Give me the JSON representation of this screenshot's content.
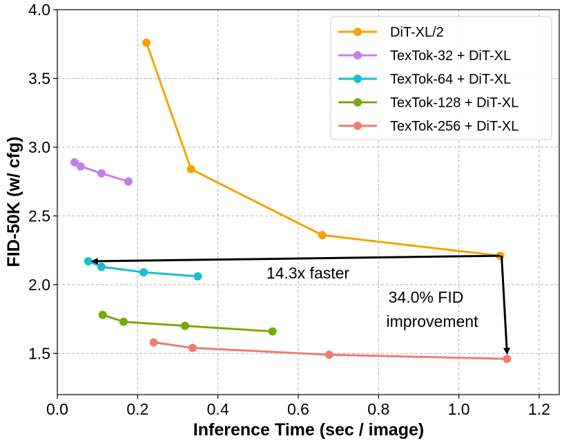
{
  "chart_data": {
    "type": "line",
    "title": "",
    "xlabel": "Inference Time (sec / image)",
    "ylabel": "FID-50K (w/ cfg)",
    "xlim": [
      0.0,
      1.25
    ],
    "ylim": [
      1.2,
      4.0
    ],
    "xticks": [
      0.0,
      0.2,
      0.4,
      0.6,
      0.8,
      1.0,
      1.2
    ],
    "xtick_labels": [
      "0.0",
      "0.2",
      "0.4",
      "0.6",
      "0.8",
      "1.0",
      "1.2"
    ],
    "yticks": [
      1.5,
      2.0,
      2.5,
      3.0,
      3.5,
      4.0
    ],
    "ytick_labels": [
      "1.5",
      "2.0",
      "2.5",
      "3.0",
      "3.5",
      "4.0"
    ],
    "grid": true,
    "legend_position": "top-right",
    "series": [
      {
        "name": "DiT-XL/2",
        "color": "#f5a300",
        "x": [
          0.222,
          0.333,
          0.66,
          1.103
        ],
        "y": [
          3.76,
          2.84,
          2.36,
          2.21
        ]
      },
      {
        "name": "TexTok-32 + DiT-XL",
        "color": "#c27fef",
        "x": [
          0.043,
          0.058,
          0.11,
          0.177
        ],
        "y": [
          2.89,
          2.86,
          2.81,
          2.75
        ]
      },
      {
        "name": "TexTok-64 + DiT-XL",
        "color": "#17becf",
        "x": [
          0.077,
          0.11,
          0.215,
          0.35
        ],
        "y": [
          2.17,
          2.13,
          2.09,
          2.06
        ]
      },
      {
        "name": "TexTok-128 + DiT-XL",
        "color": "#77a90f",
        "x": [
          0.113,
          0.165,
          0.318,
          0.536
        ],
        "y": [
          1.78,
          1.73,
          1.7,
          1.66
        ]
      },
      {
        "name": "TexTok-256 + DiT-XL",
        "color": "#f07b72",
        "x": [
          0.24,
          0.337,
          0.677,
          1.12
        ],
        "y": [
          1.58,
          1.54,
          1.49,
          1.46
        ]
      }
    ],
    "annotations": [
      {
        "text": "14.3x faster",
        "from": [
          1.103,
          2.21
        ],
        "to": [
          0.077,
          2.17
        ]
      },
      {
        "text_lines": [
          "34.0% FID",
          "improvement"
        ],
        "from": [
          1.103,
          2.21
        ],
        "to": [
          1.12,
          1.46
        ]
      }
    ]
  }
}
